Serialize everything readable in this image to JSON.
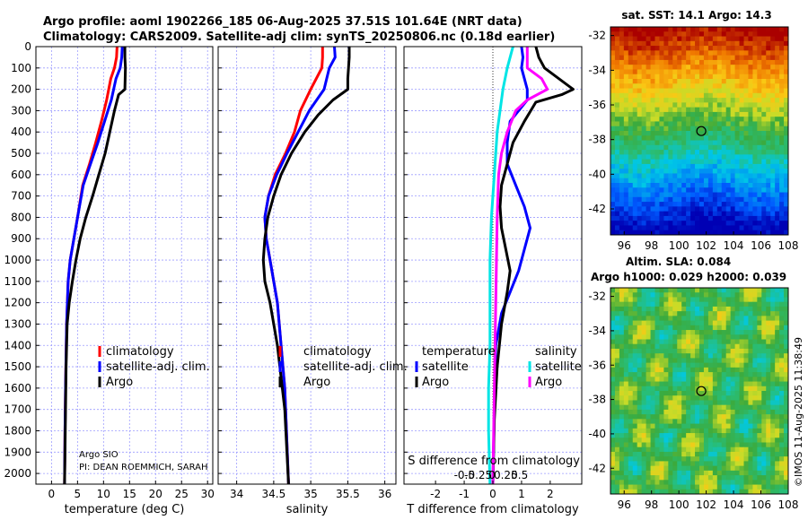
{
  "title": {
    "line1": "Argo profile: aoml 1902266_185 06-Aug-2025 37.51S 101.64E (NRT data)",
    "line2": "Climatology: CARS2009. Satellite-adj clim: synTS_20250806.nc (0.18d earlier)"
  },
  "colors": {
    "climatology": "#ff0000",
    "satellite_adj": "#0000ff",
    "argo": "#000000",
    "sat_salinity": "#00e5e5",
    "argo_salinity": "#ff00ff",
    "grid": "#9c9cff"
  },
  "yaxis": {
    "ylim": [
      0,
      2050
    ],
    "ticks": [
      0,
      100,
      200,
      300,
      400,
      500,
      600,
      700,
      800,
      900,
      1000,
      1100,
      1200,
      1300,
      1400,
      1500,
      1600,
      1700,
      1800,
      1900,
      2000
    ],
    "labels": [
      "0",
      "100",
      "200",
      "300",
      "400",
      "500",
      "600",
      "700",
      "800",
      "900",
      "1000",
      "1100",
      "1200",
      "1300",
      "1400",
      "1500",
      "1600",
      "1700",
      "1800",
      "1900",
      "2000"
    ]
  },
  "chart_data": [
    {
      "type": "line",
      "id": "temp",
      "xlabel": "temperature (deg C)",
      "xlim": [
        -3,
        31
      ],
      "xticks": [
        0,
        5,
        10,
        15,
        20,
        25,
        30
      ],
      "xtick_labels": [
        "0",
        "5",
        "10",
        "15",
        "20",
        "25",
        "30"
      ],
      "legend": [
        "climatology",
        "satellite-adj. clim.",
        "Argo"
      ],
      "annotations": [
        "Argo SIO",
        "PI: DEAN ROEMMICH, SARAH"
      ],
      "series": [
        {
          "name": "climatology",
          "color": "#ff0000",
          "x": [
            12.6,
            12.5,
            12.1,
            11.4,
            10.6,
            9.6,
            8.5,
            7.3,
            6.0,
            5.0,
            4.3,
            3.6,
            3.2,
            2.9,
            2.7,
            2.6,
            2.5
          ],
          "y": [
            0,
            50,
            100,
            150,
            250,
            350,
            450,
            550,
            650,
            800,
            900,
            1000,
            1100,
            1300,
            1600,
            1800,
            2050
          ]
        },
        {
          "name": "satellite-adj. clim.",
          "color": "#0000ff",
          "x": [
            13.6,
            13.5,
            13.2,
            12.4,
            11.5,
            10.2,
            8.9,
            7.5,
            6.1,
            5.0,
            4.3,
            3.6,
            3.2,
            2.9,
            2.7,
            2.6,
            2.5
          ],
          "y": [
            0,
            50,
            100,
            150,
            250,
            350,
            450,
            550,
            650,
            800,
            900,
            1000,
            1100,
            1300,
            1600,
            1800,
            2050
          ]
        },
        {
          "name": "Argo",
          "color": "#000000",
          "x": [
            14.1,
            14.1,
            14.2,
            14.1,
            12.9,
            12.1,
            11.2,
            10.3,
            9.1,
            7.9,
            6.6,
            5.5,
            4.7,
            4.0,
            3.4,
            3.0,
            2.8,
            2.7,
            2.6,
            2.5
          ],
          "y": [
            0,
            50,
            100,
            200,
            225,
            300,
            400,
            500,
            600,
            700,
            800,
            900,
            1000,
            1100,
            1200,
            1300,
            1500,
            1700,
            1900,
            2050
          ]
        }
      ]
    },
    {
      "type": "line",
      "id": "sal",
      "xlabel": "salinity",
      "xlim": [
        33.75,
        36.15
      ],
      "xticks": [
        34,
        34.5,
        35,
        35.5,
        36
      ],
      "xtick_labels": [
        "34",
        "34.5",
        "35",
        "35.5",
        "36"
      ],
      "legend": [
        "climatology",
        "satellite-adj. clim.",
        "Argo"
      ],
      "series": [
        {
          "name": "climatology",
          "color": "#ff0000",
          "x": [
            35.16,
            35.16,
            35.15,
            35.0,
            34.86,
            34.78,
            34.66,
            34.52,
            34.43,
            34.38,
            34.4,
            34.45,
            34.55,
            34.65,
            34.7
          ],
          "y": [
            0,
            50,
            100,
            200,
            300,
            400,
            500,
            600,
            700,
            800,
            900,
            1000,
            1200,
            1600,
            2050
          ]
        },
        {
          "name": "satellite-adj. clim.",
          "color": "#0000ff",
          "x": [
            35.32,
            35.33,
            35.25,
            35.18,
            34.98,
            34.83,
            34.68,
            34.54,
            34.43,
            34.38,
            34.4,
            34.45,
            34.55,
            34.65,
            34.7
          ],
          "y": [
            0,
            50,
            100,
            200,
            300,
            400,
            500,
            600,
            700,
            800,
            900,
            1000,
            1200,
            1600,
            2050
          ]
        },
        {
          "name": "Argo",
          "color": "#000000",
          "x": [
            35.52,
            35.52,
            35.5,
            35.5,
            35.3,
            35.1,
            34.92,
            34.74,
            34.6,
            34.5,
            34.42,
            34.38,
            34.36,
            34.38,
            34.45,
            34.55,
            34.65,
            34.7
          ],
          "y": [
            0,
            50,
            150,
            200,
            250,
            320,
            400,
            500,
            600,
            700,
            800,
            900,
            1000,
            1100,
            1200,
            1400,
            1700,
            2050
          ]
        }
      ]
    },
    {
      "type": "line",
      "id": "diff",
      "xlabel": "T difference from climatology",
      "xlim": [
        -3.1,
        3.1
      ],
      "xticks": [
        -2,
        -1,
        0,
        1,
        2
      ],
      "xtick_labels": [
        "-2",
        "-1",
        "0",
        "1",
        "2"
      ],
      "top_axis_label": "S difference from climatology",
      "top_xticks": [
        -0.5,
        -0.25,
        0,
        0.25,
        0.5
      ],
      "top_xtick_labels": [
        "-0.5",
        "-0.25",
        "0",
        "0.25",
        "0.5"
      ],
      "legend_temperature": {
        "title": "temperature",
        "items": [
          "satellite",
          "Argo"
        ]
      },
      "legend_salinity": {
        "title": "salinity",
        "items": [
          "satellite",
          "Argo"
        ]
      },
      "series": [
        {
          "name": "temperature satellite",
          "color": "#0000ff",
          "x": [
            1.0,
            1.05,
            1.0,
            1.2,
            1.2,
            0.9,
            0.6,
            0.5,
            0.5,
            0.8,
            1.1,
            1.3,
            1.1,
            0.9,
            0.6,
            0.3,
            0.1,
            0.05,
            0.0
          ],
          "y": [
            0,
            50,
            100,
            200,
            250,
            300,
            350,
            450,
            550,
            650,
            750,
            850,
            950,
            1050,
            1150,
            1250,
            1400,
            1700,
            2050
          ]
        },
        {
          "name": "temperature Argo",
          "color": "#000000",
          "x": [
            1.5,
            1.6,
            1.8,
            2.8,
            2.4,
            1.5,
            1.1,
            0.7,
            0.5,
            0.3,
            0.25,
            0.3,
            0.45,
            0.6,
            0.5,
            0.3,
            0.15,
            0.05,
            0.0
          ],
          "y": [
            0,
            50,
            100,
            200,
            225,
            260,
            350,
            450,
            550,
            650,
            750,
            850,
            950,
            1050,
            1150,
            1300,
            1500,
            1750,
            2050
          ]
        },
        {
          "name": "salinity satellite",
          "color": "#00e5e5",
          "x": [
            0.7,
            0.5,
            0.35,
            0.25,
            0.15,
            0.1,
            0.05,
            0.0,
            -0.05,
            -0.1,
            -0.1,
            -0.1,
            -0.15,
            -0.15,
            -0.1
          ],
          "y": [
            0,
            100,
            200,
            300,
            400,
            500,
            600,
            700,
            800,
            1000,
            1200,
            1400,
            1600,
            1800,
            2050
          ]
        },
        {
          "name": "salinity Argo",
          "color": "#ff00ff",
          "x": [
            1.2,
            1.2,
            1.7,
            1.9,
            1.2,
            0.8,
            0.5,
            0.3,
            0.2,
            0.15,
            0.1,
            0.05,
            0.0
          ],
          "y": [
            0,
            100,
            150,
            200,
            250,
            300,
            400,
            500,
            600,
            800,
            1200,
            1600,
            2050
          ]
        }
      ]
    },
    {
      "type": "heatmap",
      "id": "sst",
      "title": "sat. SST: 14.1 Argo: 14.3",
      "xlim": [
        95,
        108
      ],
      "ylim": [
        -43.5,
        -31.5
      ],
      "xticks": [
        96,
        98,
        100,
        102,
        104,
        106,
        108
      ],
      "yticks": [
        -32,
        -34,
        -36,
        -38,
        -40,
        -42
      ],
      "xtick_labels": [
        "96",
        "98",
        "100",
        "102",
        "104",
        "106",
        "108"
      ],
      "ytick_labels": [
        "-32",
        "-34",
        "-36",
        "-38",
        "-40",
        "-42"
      ],
      "argo_position": {
        "lon": 101.64,
        "lat": -37.51
      }
    },
    {
      "type": "heatmap",
      "id": "sla",
      "title_line1": "Altim. SLA: 0.084",
      "title_line2": "Argo h1000: 0.029 h2000: 0.039",
      "xlim": [
        95,
        108
      ],
      "ylim": [
        -43.5,
        -31.5
      ],
      "xticks": [
        96,
        98,
        100,
        102,
        104,
        106,
        108
      ],
      "yticks": [
        -32,
        -34,
        -36,
        -38,
        -40,
        -42
      ],
      "xtick_labels": [
        "96",
        "98",
        "100",
        "102",
        "104",
        "106",
        "108"
      ],
      "ytick_labels": [
        "-32",
        "-34",
        "-36",
        "-38",
        "-40",
        "-42"
      ],
      "argo_position": {
        "lon": 101.64,
        "lat": -37.51
      }
    }
  ],
  "watermark": "©IMOS 11-Aug-2025 11:38:49"
}
